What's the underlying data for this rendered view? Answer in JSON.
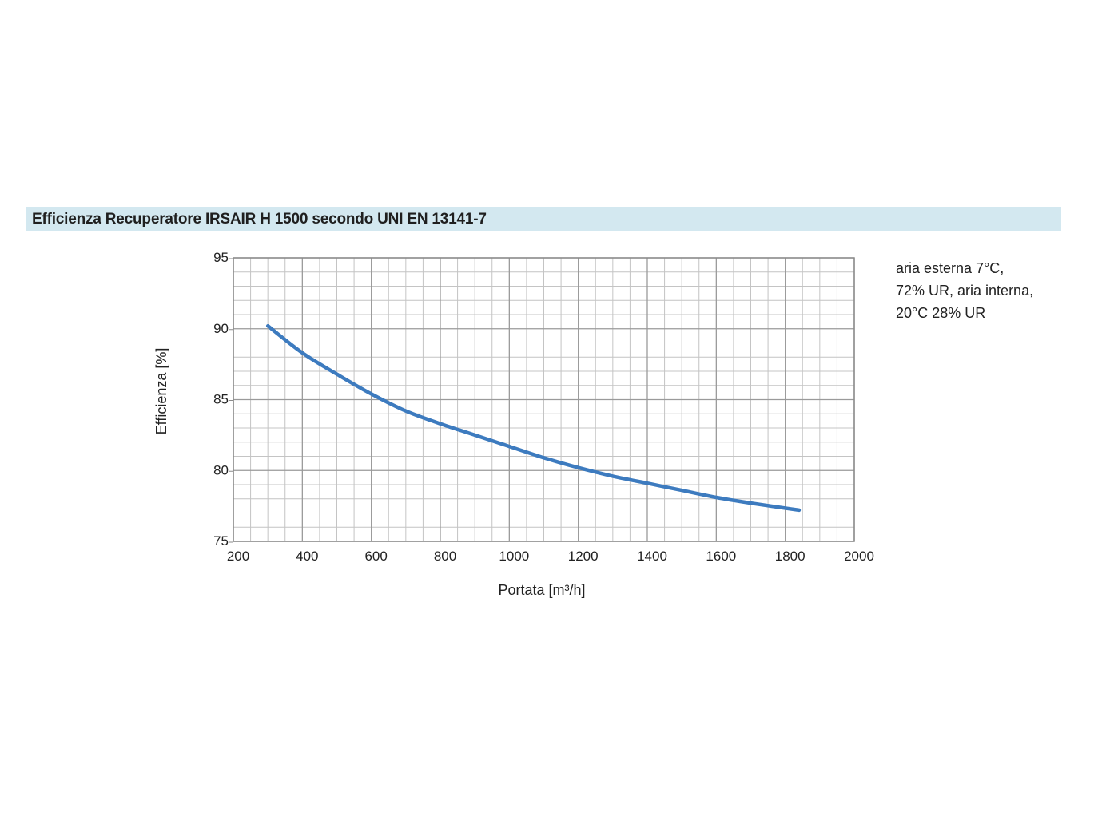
{
  "header": {
    "title": "Efficienza Recuperatore IRSAIR H 1500 secondo UNI EN 13141-7"
  },
  "note": {
    "lines": [
      "aria esterna 7°C,",
      "72% UR, aria interna,",
      "20°C 28% UR"
    ]
  },
  "chart_data": {
    "type": "line",
    "title": "Efficienza Recuperatore IRSAIR H 1500 secondo UNI EN 13141-7",
    "xlabel": "Portata [m³/h]",
    "ylabel": "Efficienza [%]",
    "xlim": [
      200,
      2000
    ],
    "ylim": [
      75,
      95
    ],
    "x_ticks": [
      200,
      400,
      600,
      800,
      1000,
      1200,
      1400,
      1600,
      1800,
      2000
    ],
    "y_ticks": [
      75,
      80,
      85,
      90,
      95
    ],
    "grid": true,
    "line_color": "#3d7bbf",
    "series": [
      {
        "x": [
          300,
          400,
          500,
          600,
          700,
          800,
          900,
          1000,
          1100,
          1200,
          1300,
          1400,
          1500,
          1600,
          1700,
          1840
        ],
        "values": [
          90.2,
          88.3,
          86.8,
          85.4,
          84.2,
          83.3,
          82.5,
          81.7,
          80.9,
          80.2,
          79.6,
          79.1,
          78.6,
          78.1,
          77.7,
          77.2
        ]
      }
    ]
  }
}
